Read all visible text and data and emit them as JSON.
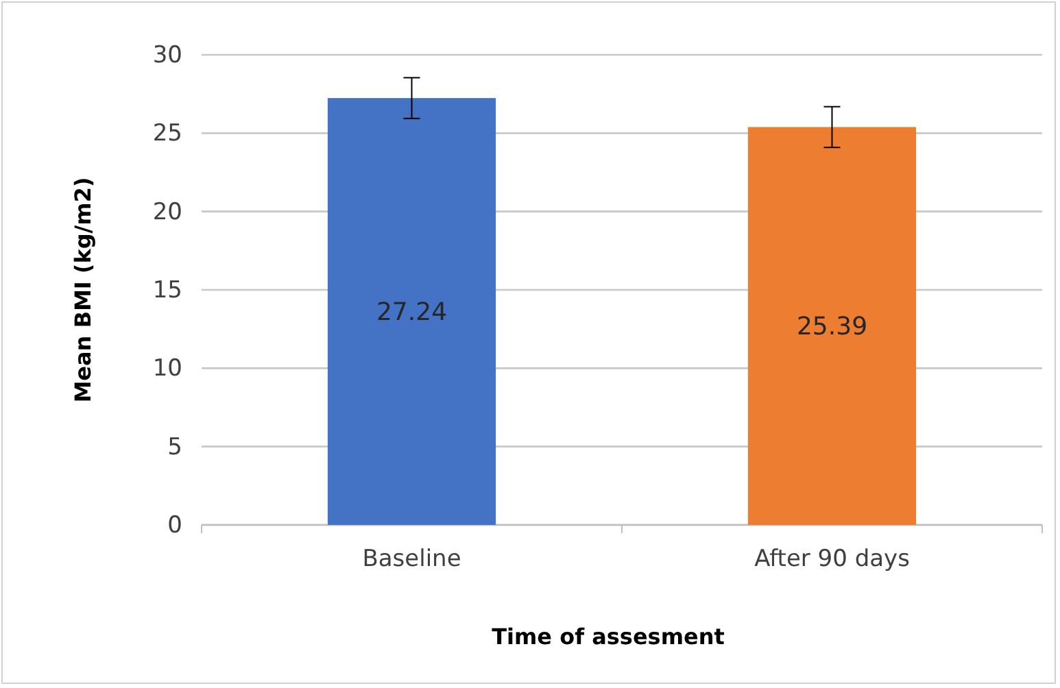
{
  "chart_data": {
    "type": "bar",
    "xlabel": "Time of assesment",
    "ylabel": "Mean BMI (kg/m2)",
    "categories": [
      "Baseline",
      "After 90 days"
    ],
    "values": [
      27.24,
      25.39
    ],
    "colors": [
      "#4472c4",
      "#ed7d31"
    ],
    "errors": [
      1.3,
      1.3
    ],
    "data_labels": true,
    "ylim": [
      0,
      30
    ],
    "yticks": [
      0,
      5,
      10,
      15,
      20,
      25,
      30
    ],
    "grid": "y"
  }
}
